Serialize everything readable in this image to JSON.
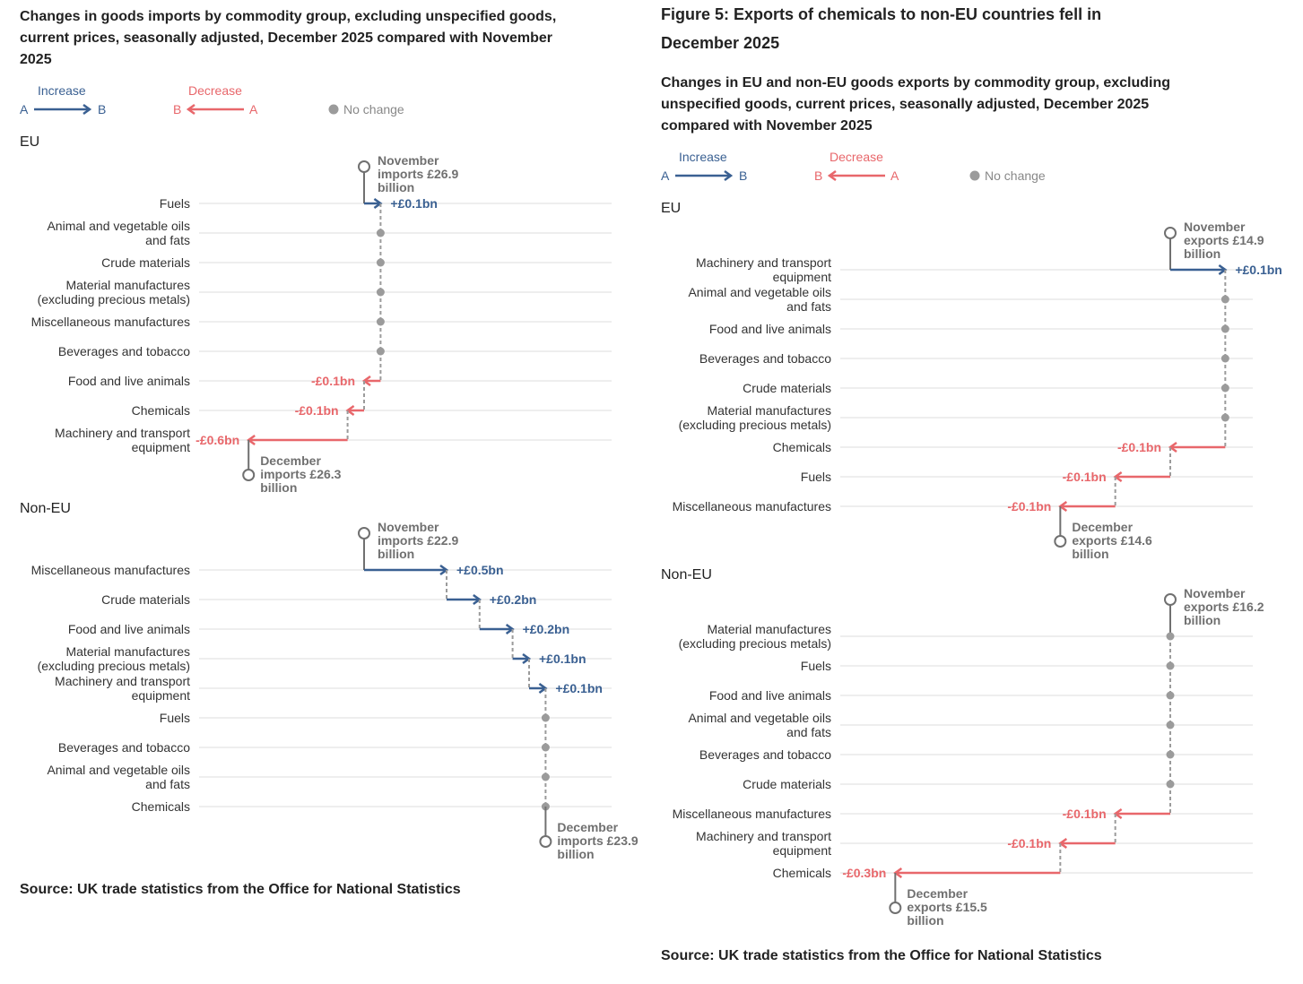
{
  "figures": [
    {
      "subtitle": "Changes in goods imports by commodity group, excluding unspecified goods, current prices, seasonally adjusted, December 2025 compared with November 2025",
      "legend": {
        "increase": "Increase",
        "increase_from": "A",
        "increase_to": "B",
        "decrease": "Decrease",
        "decrease_from": "B",
        "decrease_to": "A",
        "no_change": "No change"
      },
      "source": "Source: UK trade statistics from the Office for National Statistics"
    },
    {
      "title": "Figure 5: Exports of chemicals to non-EU countries fell in December 2025",
      "subtitle": "Changes in EU and non-EU goods exports by commodity group, excluding unspecified goods, current prices, seasonally adjusted, December 2025 compared with November 2025",
      "legend": {
        "increase": "Increase",
        "increase_from": "A",
        "increase_to": "B",
        "decrease": "Decrease",
        "decrease_from": "B",
        "decrease_to": "A",
        "no_change": "No change"
      },
      "source": "Source: UK trade statistics from the Office for National Statistics"
    }
  ],
  "chart_data": [
    {
      "type": "waterfall",
      "title": "EU",
      "start": 26.9,
      "start_label": "November imports £26.9 billion",
      "end_label": "December imports £26.3 billion",
      "categories": [
        "Fuels",
        "Animal and vegetable oils and fats",
        "Crude materials",
        "Material manufactures (excluding precious metals)",
        "Miscellaneous manufactures",
        "Beverages and tobacco",
        "Food and live animals",
        "Chemicals",
        "Machinery and transport equipment"
      ],
      "values": [
        0.1,
        0,
        0,
        0,
        0,
        0,
        -0.1,
        -0.1,
        -0.6
      ],
      "value_labels": [
        "+£0.1bn",
        null,
        null,
        null,
        null,
        null,
        "-£0.1bn",
        "-£0.1bn",
        "-£0.6bn"
      ],
      "xlim": [
        25.9,
        28.4
      ],
      "increase_color": "#3a6092",
      "decrease_color": "#e8676b",
      "no_change_color": "#9b9b9b"
    },
    {
      "type": "waterfall",
      "title": "Non-EU",
      "start": 22.9,
      "start_label": "November imports £22.9 billion",
      "end_label": "December imports £23.9 billion",
      "categories": [
        "Miscellaneous manufactures",
        "Crude materials",
        "Food and live animals",
        "Material manufactures (excluding precious metals)",
        "Machinery and transport equipment",
        "Fuels",
        "Beverages and tobacco",
        "Animal and vegetable oils and fats",
        "Chemicals"
      ],
      "values": [
        0.5,
        0.2,
        0.2,
        0.1,
        0.1,
        0,
        0,
        0,
        0
      ],
      "value_labels": [
        "+£0.5bn",
        "+£0.2bn",
        "+£0.2bn",
        "+£0.1bn",
        "+£0.1bn",
        null,
        null,
        null,
        null
      ],
      "xlim": [
        21.9,
        24.4
      ],
      "increase_color": "#3a6092",
      "decrease_color": "#e8676b",
      "no_change_color": "#9b9b9b"
    },
    {
      "type": "waterfall",
      "title": "EU",
      "start": 14.9,
      "start_label": "November exports £14.9 billion",
      "end_label": "December exports £14.6 billion",
      "categories": [
        "Machinery and transport equipment",
        "Animal and vegetable oils and fats",
        "Food and live animals",
        "Beverages and tobacco",
        "Crude materials",
        "Material manufactures (excluding precious metals)",
        "Chemicals",
        "Fuels",
        "Miscellaneous manufactures"
      ],
      "values": [
        0.1,
        0,
        0,
        0,
        0,
        0,
        -0.1,
        -0.1,
        -0.1
      ],
      "value_labels": [
        "+£0.1bn",
        null,
        null,
        null,
        null,
        null,
        "-£0.1bn",
        "-£0.1bn",
        "-£0.1bn"
      ],
      "xlim": [
        14.3,
        15.05
      ],
      "increase_color": "#3a6092",
      "decrease_color": "#e8676b",
      "no_change_color": "#9b9b9b"
    },
    {
      "type": "waterfall",
      "title": "Non-EU",
      "start": 16.2,
      "start_label": "November exports £16.2 billion",
      "end_label": "December exports £15.5 billion",
      "categories": [
        "Material manufactures (excluding precious metals)",
        "Fuels",
        "Food and live animals",
        "Animal and vegetable oils and fats",
        "Beverages and tobacco",
        "Crude materials",
        "Miscellaneous manufactures",
        "Machinery and transport equipment",
        "Chemicals"
      ],
      "values": [
        0,
        0,
        0,
        0,
        0,
        0,
        -0.1,
        -0.1,
        -0.3
      ],
      "value_labels": [
        null,
        null,
        null,
        null,
        null,
        null,
        "-£0.1bn",
        "-£0.1bn",
        "-£0.3bn"
      ],
      "xlim": [
        15.6,
        16.35
      ],
      "increase_color": "#3a6092",
      "decrease_color": "#e8676b",
      "no_change_color": "#9b9b9b"
    }
  ]
}
